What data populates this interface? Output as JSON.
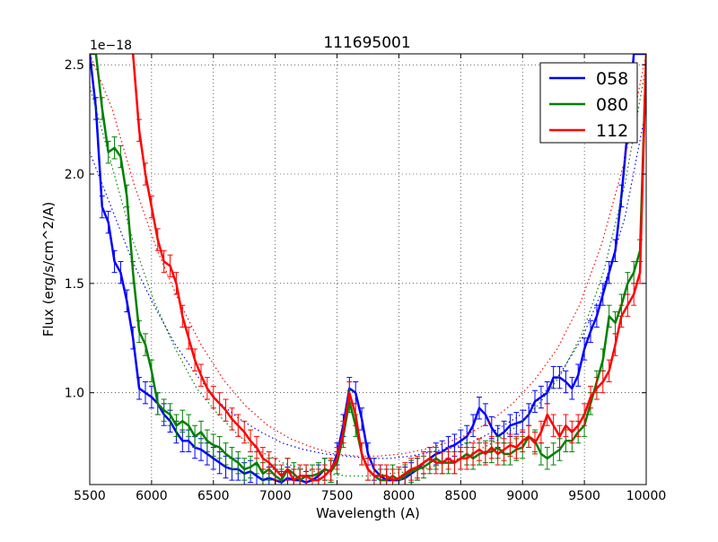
{
  "chart_data": {
    "type": "line",
    "title": "111695001",
    "xlabel": "Wavelength (A)",
    "ylabel": "Flux (erg/s/cm^2/A)",
    "y_multiplier": "1e−18",
    "xlim": [
      5500,
      10000
    ],
    "ylim": [
      0.58,
      2.55
    ],
    "xticks": [
      5500,
      6000,
      6500,
      7000,
      7500,
      8000,
      8500,
      9000,
      9500,
      10000
    ],
    "yticks": [
      1.0,
      1.5,
      2.0,
      2.5
    ],
    "ytick_labels": [
      "1.0",
      "1.5",
      "2.0",
      "2.5"
    ],
    "grid": true,
    "legend_position": "top-right",
    "series": [
      {
        "name": "058",
        "color": "#0000ff",
        "x": [
          5500,
          5550,
          5600,
          5650,
          5700,
          5750,
          5800,
          5850,
          5900,
          5950,
          6000,
          6050,
          6100,
          6150,
          6200,
          6250,
          6300,
          6350,
          6400,
          6450,
          6500,
          6550,
          6600,
          6650,
          6700,
          6750,
          6800,
          6850,
          6900,
          6950,
          7000,
          7050,
          7100,
          7150,
          7200,
          7250,
          7300,
          7350,
          7400,
          7450,
          7500,
          7550,
          7600,
          7650,
          7700,
          7750,
          7800,
          7850,
          7900,
          7950,
          8000,
          8050,
          8100,
          8150,
          8200,
          8250,
          8300,
          8350,
          8400,
          8450,
          8500,
          8550,
          8600,
          8650,
          8700,
          8750,
          8800,
          8850,
          8900,
          8950,
          9000,
          9050,
          9100,
          9150,
          9200,
          9250,
          9300,
          9350,
          9400,
          9450,
          9500,
          9550,
          9600,
          9650,
          9700,
          9750,
          9800,
          9850,
          9900,
          9950,
          10000
        ],
        "y": [
          2.55,
          2.3,
          1.85,
          1.78,
          1.6,
          1.55,
          1.42,
          1.25,
          1.02,
          1.0,
          0.98,
          0.95,
          0.9,
          0.87,
          0.82,
          0.78,
          0.78,
          0.75,
          0.74,
          0.72,
          0.7,
          0.68,
          0.66,
          0.65,
          0.65,
          0.63,
          0.64,
          0.62,
          0.6,
          0.61,
          0.6,
          0.59,
          0.61,
          0.6,
          0.6,
          0.59,
          0.6,
          0.62,
          0.65,
          0.64,
          0.72,
          0.85,
          1.02,
          1.0,
          0.88,
          0.72,
          0.65,
          0.62,
          0.6,
          0.6,
          0.6,
          0.61,
          0.63,
          0.65,
          0.68,
          0.7,
          0.72,
          0.73,
          0.75,
          0.76,
          0.78,
          0.8,
          0.85,
          0.93,
          0.9,
          0.84,
          0.8,
          0.82,
          0.85,
          0.86,
          0.87,
          0.9,
          0.96,
          0.98,
          1.0,
          1.07,
          1.07,
          1.05,
          1.02,
          1.08,
          1.2,
          1.28,
          1.35,
          1.45,
          1.55,
          1.65,
          1.9,
          2.2,
          2.55,
          2.55,
          2.55
        ],
        "err": 0.05,
        "fit": [
          2.1,
          1.85,
          1.6,
          1.4,
          1.22,
          1.08,
          0.96,
          0.88,
          0.82,
          0.77,
          0.74,
          0.72,
          0.71,
          0.7,
          0.7,
          0.71,
          0.73,
          0.75,
          0.78,
          0.83,
          0.89,
          0.97,
          1.09,
          1.25,
          1.48,
          1.8,
          2.3
        ]
      },
      {
        "name": "080",
        "color": "#008000",
        "x": [
          5500,
          5550,
          5600,
          5650,
          5700,
          5750,
          5800,
          5850,
          5900,
          5950,
          6000,
          6050,
          6100,
          6150,
          6200,
          6250,
          6300,
          6350,
          6400,
          6450,
          6500,
          6550,
          6600,
          6650,
          6700,
          6750,
          6800,
          6850,
          6900,
          6950,
          7000,
          7050,
          7100,
          7150,
          7200,
          7250,
          7300,
          7350,
          7400,
          7450,
          7500,
          7550,
          7600,
          7650,
          7700,
          7750,
          7800,
          7850,
          7900,
          7950,
          8000,
          8050,
          8100,
          8150,
          8200,
          8250,
          8300,
          8350,
          8400,
          8450,
          8500,
          8550,
          8600,
          8650,
          8700,
          8750,
          8800,
          8850,
          8900,
          8950,
          9000,
          9050,
          9100,
          9150,
          9200,
          9250,
          9300,
          9350,
          9400,
          9450,
          9500,
          9550,
          9600,
          9650,
          9700,
          9750,
          9800,
          9850,
          9900,
          9950,
          10000
        ],
        "y": [
          2.55,
          2.55,
          2.3,
          2.1,
          2.12,
          2.08,
          1.9,
          1.55,
          1.28,
          1.22,
          1.1,
          0.95,
          0.92,
          0.9,
          0.85,
          0.87,
          0.85,
          0.8,
          0.82,
          0.78,
          0.76,
          0.75,
          0.72,
          0.7,
          0.68,
          0.65,
          0.66,
          0.68,
          0.63,
          0.65,
          0.62,
          0.6,
          0.65,
          0.63,
          0.6,
          0.62,
          0.62,
          0.63,
          0.65,
          0.64,
          0.68,
          0.8,
          0.96,
          0.85,
          0.72,
          0.65,
          0.62,
          0.6,
          0.6,
          0.62,
          0.6,
          0.62,
          0.64,
          0.65,
          0.66,
          0.68,
          0.7,
          0.68,
          0.68,
          0.68,
          0.7,
          0.72,
          0.7,
          0.72,
          0.73,
          0.73,
          0.75,
          0.72,
          0.72,
          0.74,
          0.75,
          0.8,
          0.78,
          0.72,
          0.7,
          0.72,
          0.74,
          0.78,
          0.78,
          0.82,
          0.85,
          0.95,
          1.05,
          1.15,
          1.35,
          1.32,
          1.4,
          1.5,
          1.55,
          1.65,
          2.55
        ],
        "err": 0.05,
        "fit": [
          2.4,
          2.05,
          1.7,
          1.42,
          1.2,
          1.02,
          0.9,
          0.8,
          0.73,
          0.68,
          0.65,
          0.63,
          0.62,
          0.62,
          0.63,
          0.64,
          0.66,
          0.69,
          0.73,
          0.78,
          0.85,
          0.95,
          1.08,
          1.27,
          1.55,
          1.95,
          2.5
        ]
      },
      {
        "name": "112",
        "color": "#ff0000",
        "x": [
          5850,
          5900,
          5950,
          6000,
          6050,
          6100,
          6150,
          6200,
          6250,
          6300,
          6350,
          6400,
          6450,
          6500,
          6550,
          6600,
          6650,
          6700,
          6750,
          6800,
          6850,
          6900,
          6950,
          7000,
          7050,
          7100,
          7150,
          7200,
          7250,
          7300,
          7350,
          7400,
          7450,
          7500,
          7550,
          7600,
          7650,
          7700,
          7750,
          7800,
          7850,
          7900,
          7950,
          8000,
          8050,
          8100,
          8150,
          8200,
          8250,
          8300,
          8350,
          8400,
          8450,
          8500,
          8550,
          8600,
          8650,
          8700,
          8750,
          8800,
          8850,
          8900,
          8950,
          9000,
          9050,
          9100,
          9150,
          9200,
          9250,
          9300,
          9350,
          9400,
          9450,
          9500,
          9550,
          9600,
          9650,
          9700,
          9750,
          9800,
          9850,
          9900,
          9950,
          10000
        ],
        "y": [
          2.55,
          2.2,
          2.0,
          1.85,
          1.7,
          1.6,
          1.58,
          1.5,
          1.35,
          1.25,
          1.15,
          1.08,
          1.02,
          0.98,
          0.95,
          0.92,
          0.88,
          0.85,
          0.82,
          0.78,
          0.75,
          0.7,
          0.68,
          0.65,
          0.62,
          0.65,
          0.6,
          0.62,
          0.62,
          0.6,
          0.6,
          0.62,
          0.65,
          0.7,
          0.82,
          1.0,
          0.9,
          0.72,
          0.65,
          0.62,
          0.62,
          0.62,
          0.6,
          0.61,
          0.63,
          0.65,
          0.66,
          0.68,
          0.7,
          0.68,
          0.68,
          0.7,
          0.68,
          0.7,
          0.7,
          0.72,
          0.74,
          0.72,
          0.75,
          0.72,
          0.74,
          0.76,
          0.75,
          0.78,
          0.8,
          0.77,
          0.82,
          0.9,
          0.85,
          0.8,
          0.85,
          0.82,
          0.85,
          0.9,
          0.98,
          1.02,
          1.05,
          1.1,
          1.22,
          1.35,
          1.4,
          1.45,
          1.55,
          2.55
        ],
        "err": 0.05,
        "fit": [
          2.55,
          2.3,
          1.95,
          1.66,
          1.42,
          1.22,
          1.06,
          0.94,
          0.85,
          0.79,
          0.75,
          0.72,
          0.71,
          0.71,
          0.72,
          0.74,
          0.77,
          0.81,
          0.87,
          0.95,
          1.06,
          1.2,
          1.4,
          1.68,
          2.05,
          2.55
        ]
      }
    ]
  }
}
